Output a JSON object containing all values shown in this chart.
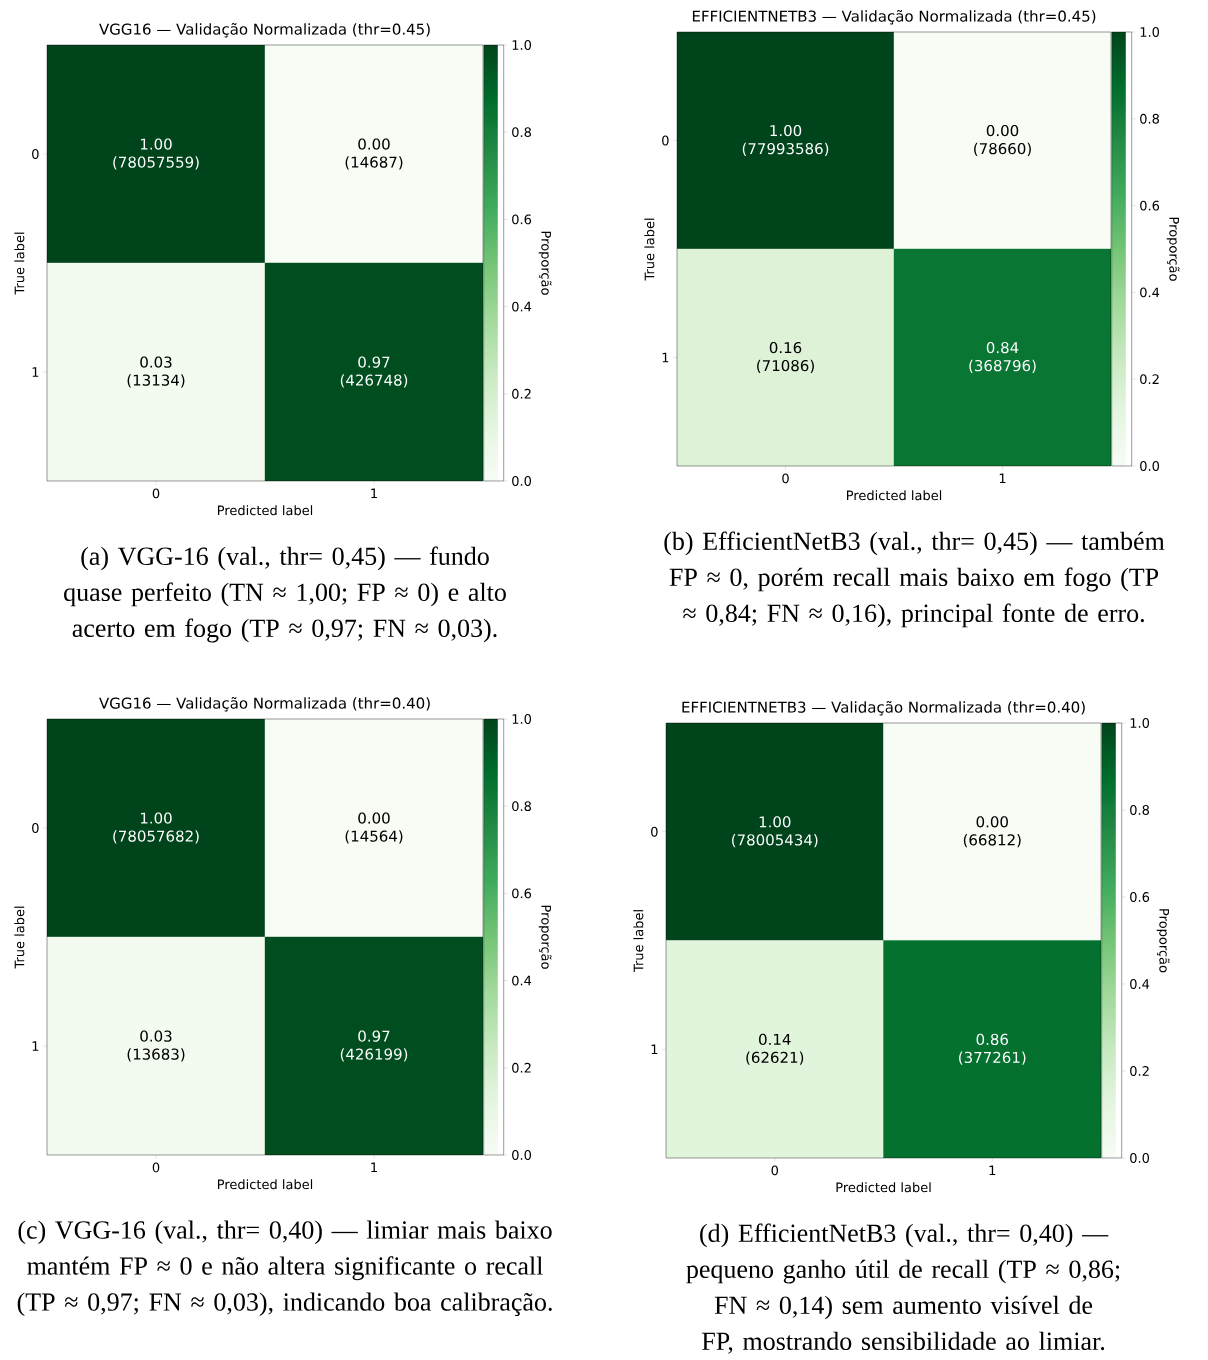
{
  "chart_data": [
    {
      "type": "heatmap",
      "title": "VGG16 — Validação Normalizada (thr=0.45)",
      "xlabel": "Predicted label",
      "ylabel": "True label",
      "clabel": "Proporção",
      "categories": [
        "0",
        "1"
      ],
      "y_categories": [
        "0",
        "1"
      ],
      "cells": [
        [
          1.0,
          0.0
        ],
        [
          0.03,
          0.97
        ]
      ],
      "cell_labels": [
        [
          "1.00 (78057559)",
          "0.00 (14687)"
        ],
        [
          "0.03 (13134)",
          "0.97 (426748)"
        ]
      ],
      "clim": [
        0,
        1
      ],
      "cticks": [
        {
          "value": 0,
          "label": "0.0"
        },
        {
          "value": 0.2,
          "label": "0.2"
        },
        {
          "value": 0.4,
          "label": "0.4"
        },
        {
          "value": 0.6,
          "label": "0.6"
        },
        {
          "value": 0.8,
          "label": "0.8"
        },
        {
          "value": 1,
          "label": "1.0"
        }
      ],
      "annotations": [
        "(a) VGG-16 (val., thr= 0,45) — fundo quase perfeito (TN ≈ 1,00; FP ≈ 0) e alto acerto em fogo (TP ≈ 0,97; FN ≈ 0,03)."
      ]
    },
    {
      "type": "heatmap",
      "title": "EFFICIENTNETB3 — Validação Normalizada (thr=0.45)",
      "xlabel": "Predicted label",
      "ylabel": "True label",
      "clabel": "Proporção",
      "categories": [
        "0",
        "1"
      ],
      "y_categories": [
        "0",
        "1"
      ],
      "cells": [
        [
          1.0,
          0.0
        ],
        [
          0.16,
          0.84
        ]
      ],
      "cell_labels": [
        [
          "1.00 (77993586)",
          "0.00 (78660)"
        ],
        [
          "0.16 (71086)",
          "0.84 (368796)"
        ]
      ],
      "clim": [
        0,
        1
      ],
      "cticks": [
        {
          "value": 0,
          "label": "0.0"
        },
        {
          "value": 0.2,
          "label": "0.2"
        },
        {
          "value": 0.4,
          "label": "0.4"
        },
        {
          "value": 0.6,
          "label": "0.6"
        },
        {
          "value": 0.8,
          "label": "0.8"
        },
        {
          "value": 1,
          "label": "1.0"
        }
      ],
      "annotations": [
        "(b) EfficientNetB3 (val., thr= 0,45) — também FP ≈ 0, porém recall mais baixo em fogo (TP ≈ 0,84; FN ≈ 0,16), principal fonte de erro."
      ]
    },
    {
      "type": "heatmap",
      "title": "VGG16 — Validação Normalizada (thr=0.40)",
      "xlabel": "Predicted label",
      "ylabel": "True label",
      "clabel": "Proporção",
      "categories": [
        "0",
        "1"
      ],
      "y_categories": [
        "0",
        "1"
      ],
      "cells": [
        [
          1.0,
          0.0
        ],
        [
          0.03,
          0.97
        ]
      ],
      "cell_labels": [
        [
          "1.00 (78057682)",
          "0.00 (14564)"
        ],
        [
          "0.03 (13683)",
          "0.97 (426199)"
        ]
      ],
      "clim": [
        0,
        1
      ],
      "cticks": [
        {
          "value": 0,
          "label": "0.0"
        },
        {
          "value": 0.2,
          "label": "0.2"
        },
        {
          "value": 0.4,
          "label": "0.4"
        },
        {
          "value": 0.6,
          "label": "0.6"
        },
        {
          "value": 0.8,
          "label": "0.8"
        },
        {
          "value": 1,
          "label": "1.0"
        }
      ],
      "annotations": [
        "(c) VGG-16 (val., thr= 0,40) — limiar mais baixo mantém FP ≈ 0 e não altera significante o recall (TP ≈ 0,97; FN ≈ 0,03), indicando boa calibração."
      ]
    },
    {
      "type": "heatmap",
      "title": "EFFICIENTNETB3 — Validação Normalizada (thr=0.40)",
      "xlabel": "Predicted label",
      "ylabel": "True label",
      "clabel": "Proporção",
      "categories": [
        "0",
        "1"
      ],
      "y_categories": [
        "0",
        "1"
      ],
      "cells": [
        [
          1.0,
          0.0
        ],
        [
          0.14,
          0.86
        ]
      ],
      "cell_labels": [
        [
          "1.00 (78005434)",
          "0.00 (66812)"
        ],
        [
          "0.14 (62621)",
          "0.86 (377261)"
        ]
      ],
      "clim": [
        0,
        1
      ],
      "cticks": [
        {
          "value": 0,
          "label": "0.0"
        },
        {
          "value": 0.2,
          "label": "0.2"
        },
        {
          "value": 0.4,
          "label": "0.4"
        },
        {
          "value": 0.6,
          "label": "0.6"
        },
        {
          "value": 0.8,
          "label": "0.8"
        },
        {
          "value": 1,
          "label": "1.0"
        }
      ],
      "annotations": [
        "(d) EfficientNetB3 (val., thr= 0,40) — pequeno ganho útil de recall (TP ≈ 0,86; FN ≈ 0,14) sem aumento visível de FP, mostrando sensibilidade ao limiar."
      ]
    }
  ]
}
